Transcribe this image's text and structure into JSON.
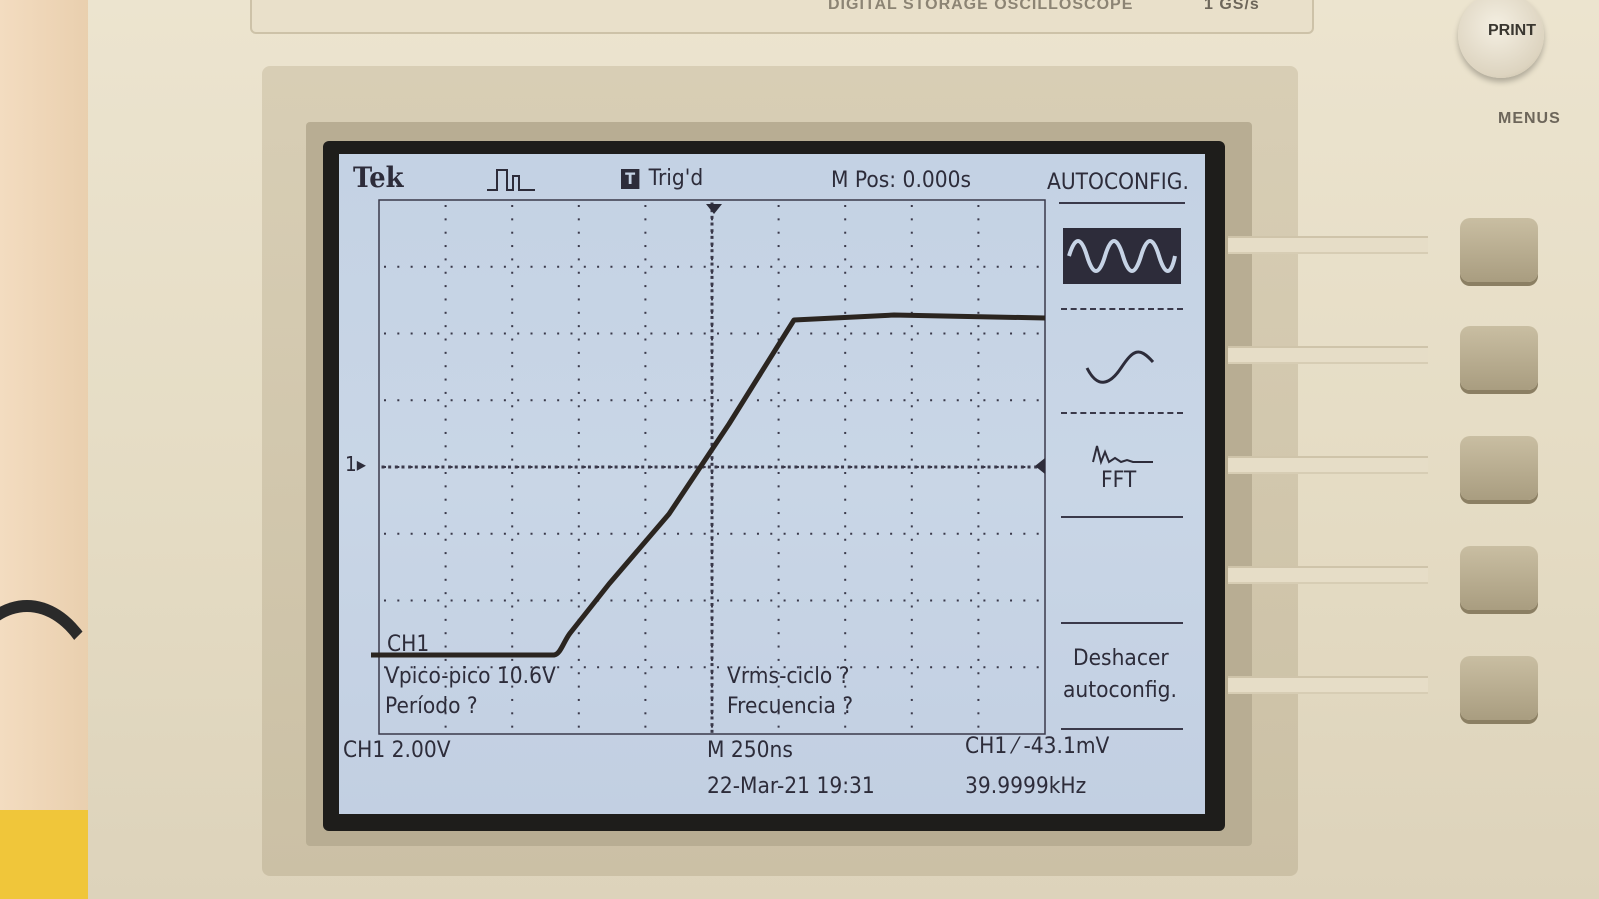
{
  "device": {
    "model_header": "DIGITAL STORAGE OSCILLOSCOPE",
    "sample_rate": "1 GS/s",
    "print_label": "PRINT",
    "menus_label": "MENUS"
  },
  "screen": {
    "brand": "Tek",
    "trigger_status": "Trig'd",
    "trigger_icon": "T",
    "m_pos": "M Pos: 0.000s",
    "channel_tag": "CH1",
    "channel_marker": "1",
    "measurements": {
      "vpp": "Vpico-pico 10.6V",
      "period": "Período ?",
      "vrms": "Vrms-ciclo ?",
      "frequency": "Frecuencia ?"
    },
    "footer": {
      "ch_scale": "CH1  2.00V",
      "timebase": "M 250ns",
      "trigger": "CH1 ⁄ -43.1mV",
      "datetime": "22-Mar-21 19:31",
      "freq_readout": "39.9999kHz"
    },
    "menu": {
      "title": "AUTOCONFIG.",
      "items": [
        {
          "icon": "multi-cycle-wave-icon",
          "selected": true
        },
        {
          "icon": "single-cycle-wave-icon",
          "selected": false
        },
        {
          "icon": "fft-icon",
          "label": "FFT",
          "selected": false
        },
        {
          "label": "",
          "selected": false
        },
        {
          "label_line1": "Deshacer",
          "label_line2": "autoconfig.",
          "selected": false
        }
      ]
    }
  },
  "colors": {
    "screen_bg": "#c6d3e5",
    "trace": "#2b2520",
    "lcd_text": "#2d2c3a",
    "case": "#e6ddc7"
  }
}
